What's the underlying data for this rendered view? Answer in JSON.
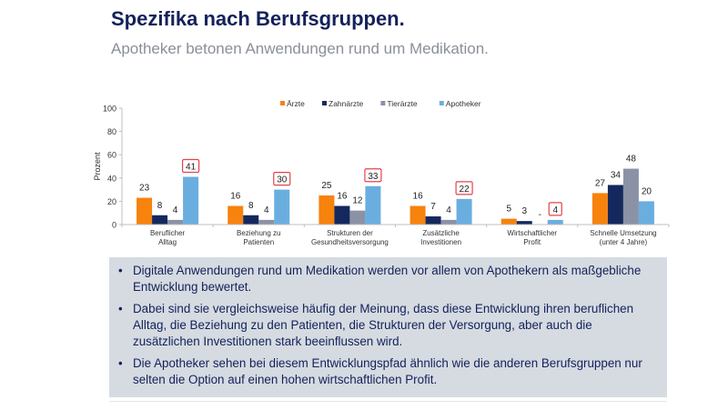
{
  "header": {
    "title": "Spezifika nach Berufsgruppen.",
    "subtitle": "Apotheker betonen Anwendungen rund um Medikation."
  },
  "chart_data": {
    "type": "bar",
    "title": "",
    "xlabel": "",
    "ylabel": "Prozent",
    "ylim": [
      0,
      100
    ],
    "yticks": [
      0,
      20,
      40,
      60,
      80,
      100
    ],
    "grid": false,
    "legend_position": "top-center",
    "categories": [
      [
        "Beruflicher",
        "Alltag"
      ],
      [
        "Beziehung zu",
        "Patienten"
      ],
      [
        "Strukturen der",
        "Gesundheitsversorgung"
      ],
      [
        "Zusätzliche",
        "Investitionen"
      ],
      [
        "Wirtschaftlicher",
        "Profit"
      ],
      [
        "Schnelle Umsetzung",
        "(unter 4 Jahre)"
      ]
    ],
    "series": [
      {
        "name": "Ärzte",
        "color": "#f7820c",
        "values": [
          23,
          16,
          25,
          16,
          5,
          27
        ],
        "labels": [
          "23",
          "16",
          "25",
          "16",
          "5",
          "27"
        ]
      },
      {
        "name": "Zahnärzte",
        "color": "#14285e",
        "values": [
          8,
          8,
          16,
          7,
          3,
          34
        ],
        "labels": [
          "8",
          "8",
          "16",
          "7",
          "3",
          "34"
        ]
      },
      {
        "name": "Tierärzte",
        "color": "#8b92a6",
        "values": [
          4,
          4,
          12,
          4,
          0,
          48
        ],
        "labels": [
          "4",
          "4",
          "12",
          "4",
          "-",
          "48"
        ]
      },
      {
        "name": "Apotheker",
        "color": "#6aaee0",
        "values": [
          41,
          30,
          33,
          22,
          4,
          20
        ],
        "labels": [
          "41",
          "30",
          "33",
          "22",
          "4",
          "20"
        ]
      }
    ],
    "highlighted": {
      "series": "Apotheker",
      "categories": [
        0,
        1,
        2,
        3,
        4
      ],
      "box_color": "#e8404a"
    }
  },
  "info": {
    "bullet": "•",
    "items": [
      "Digitale Anwendungen rund um Medikation werden vor allem von Apothekern als maßgebliche Entwicklung bewertet.",
      "Dabei sind sie vergleichsweise häufig der Meinung, dass diese Entwicklung ihren beruflichen Alltag, die Beziehung zu den Patienten, die Strukturen der Versorgung, aber auch die zusätzlichen Investitionen stark beeinflussen wird.",
      "Die Apotheker sehen bei diesem Entwicklungspfad ähnlich wie die anderen Berufsgruppen nur selten die Option auf einen hohen wirtschaftlichen Profit."
    ]
  }
}
